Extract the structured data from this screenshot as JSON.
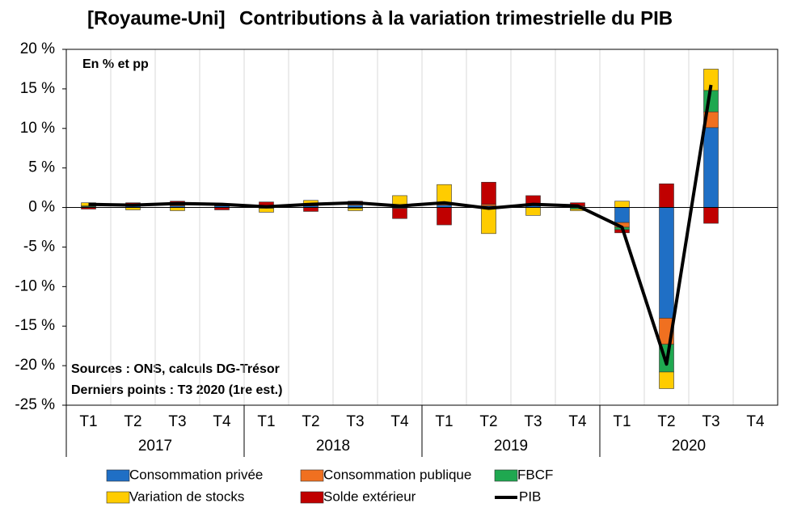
{
  "chart_data": {
    "type": "stacked_bar_line",
    "title_prefix": "[Royaume-Uni]",
    "title_prefix_color": "#c00000",
    "title": "Contributions à la variation trimestrielle du PIB",
    "subtitle": "En % et pp",
    "annotations": [
      "Sources : ONS, calculs DG-Trésor",
      "Derniers points : T3 2020 (1re est.)"
    ],
    "categories": [
      "T1",
      "T2",
      "T3",
      "T4",
      "T1",
      "T2",
      "T3",
      "T4",
      "T1",
      "T2",
      "T3",
      "T4",
      "T1",
      "T2",
      "T3",
      "T4"
    ],
    "category_groups": [
      "2017",
      "2018",
      "2019",
      "2020"
    ],
    "ylim": [
      -25,
      20
    ],
    "yticks": [
      {
        "value": -25,
        "label": "-25 %"
      },
      {
        "value": -20,
        "label": "-20 %"
      },
      {
        "value": -15,
        "label": "-15 %"
      },
      {
        "value": -10,
        "label": "-10 %"
      },
      {
        "value": -5,
        "label": "-5 %"
      },
      {
        "value": 0,
        "label": "0 %"
      },
      {
        "value": 5,
        "label": "5 %"
      },
      {
        "value": 10,
        "label": "10 %"
      },
      {
        "value": 15,
        "label": "15 %"
      },
      {
        "value": 20,
        "label": "20 %"
      }
    ],
    "vertical_grid": true,
    "series": [
      {
        "name": "Consommation privée",
        "color": "#1f6fc5",
        "values": [
          0.1,
          0.2,
          0.2,
          0.2,
          0.1,
          0.2,
          0.3,
          0.2,
          0.3,
          0.2,
          0.3,
          0.1,
          -1.9,
          -14.0,
          10.1,
          null
        ]
      },
      {
        "name": "Consommation publique",
        "color": "#f07020",
        "values": [
          0.0,
          0.0,
          0.1,
          0.0,
          0.0,
          0.1,
          0.1,
          0.1,
          0.1,
          0.2,
          0.1,
          0.1,
          -0.6,
          -3.3,
          2.0,
          null
        ]
      },
      {
        "name": "FBCF",
        "color": "#1fa850",
        "values": [
          0.1,
          0.0,
          0.1,
          0.1,
          -0.1,
          0.0,
          -0.1,
          -0.1,
          0.2,
          -0.1,
          0.1,
          -0.2,
          -0.3,
          -3.5,
          2.7,
          null
        ]
      },
      {
        "name": "Variation de stocks",
        "color": "#ffcc00",
        "values": [
          0.4,
          -0.3,
          -0.4,
          0.1,
          -0.5,
          0.6,
          -0.3,
          1.2,
          2.3,
          -3.2,
          -1.0,
          -0.2,
          0.8,
          -2.1,
          2.7,
          null
        ]
      },
      {
        "name": "Solde extérieur",
        "color": "#c00000",
        "values": [
          -0.2,
          0.4,
          0.4,
          -0.3,
          0.6,
          -0.5,
          0.4,
          -1.3,
          -2.2,
          2.8,
          1.0,
          0.4,
          -0.4,
          3.0,
          -2.0,
          null
        ]
      },
      {
        "name": "PIB",
        "type": "line",
        "color": "#000000",
        "values": [
          0.4,
          0.3,
          0.5,
          0.4,
          0.1,
          0.4,
          0.6,
          0.2,
          0.6,
          -0.1,
          0.4,
          0.2,
          -2.5,
          -19.8,
          15.5,
          null
        ]
      }
    ]
  }
}
